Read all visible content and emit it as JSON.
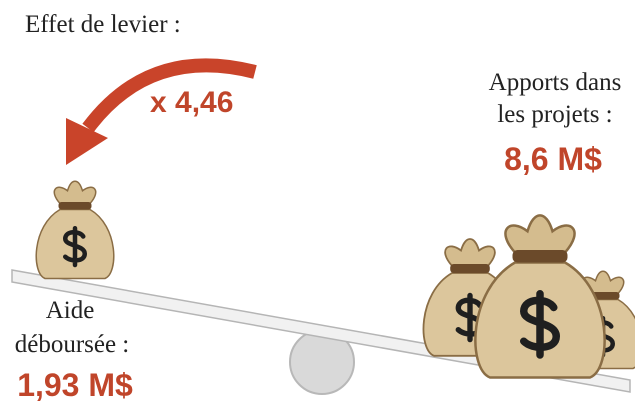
{
  "leverage": {
    "label": "Effet de levier :",
    "value": "x 4,46"
  },
  "contributions": {
    "label_lines": [
      "Apports dans",
      "les projets :"
    ],
    "value": "8,6 M$"
  },
  "aid": {
    "label_lines": [
      "Aide",
      "déboursée :"
    ],
    "value": "1,93 M$"
  }
}
